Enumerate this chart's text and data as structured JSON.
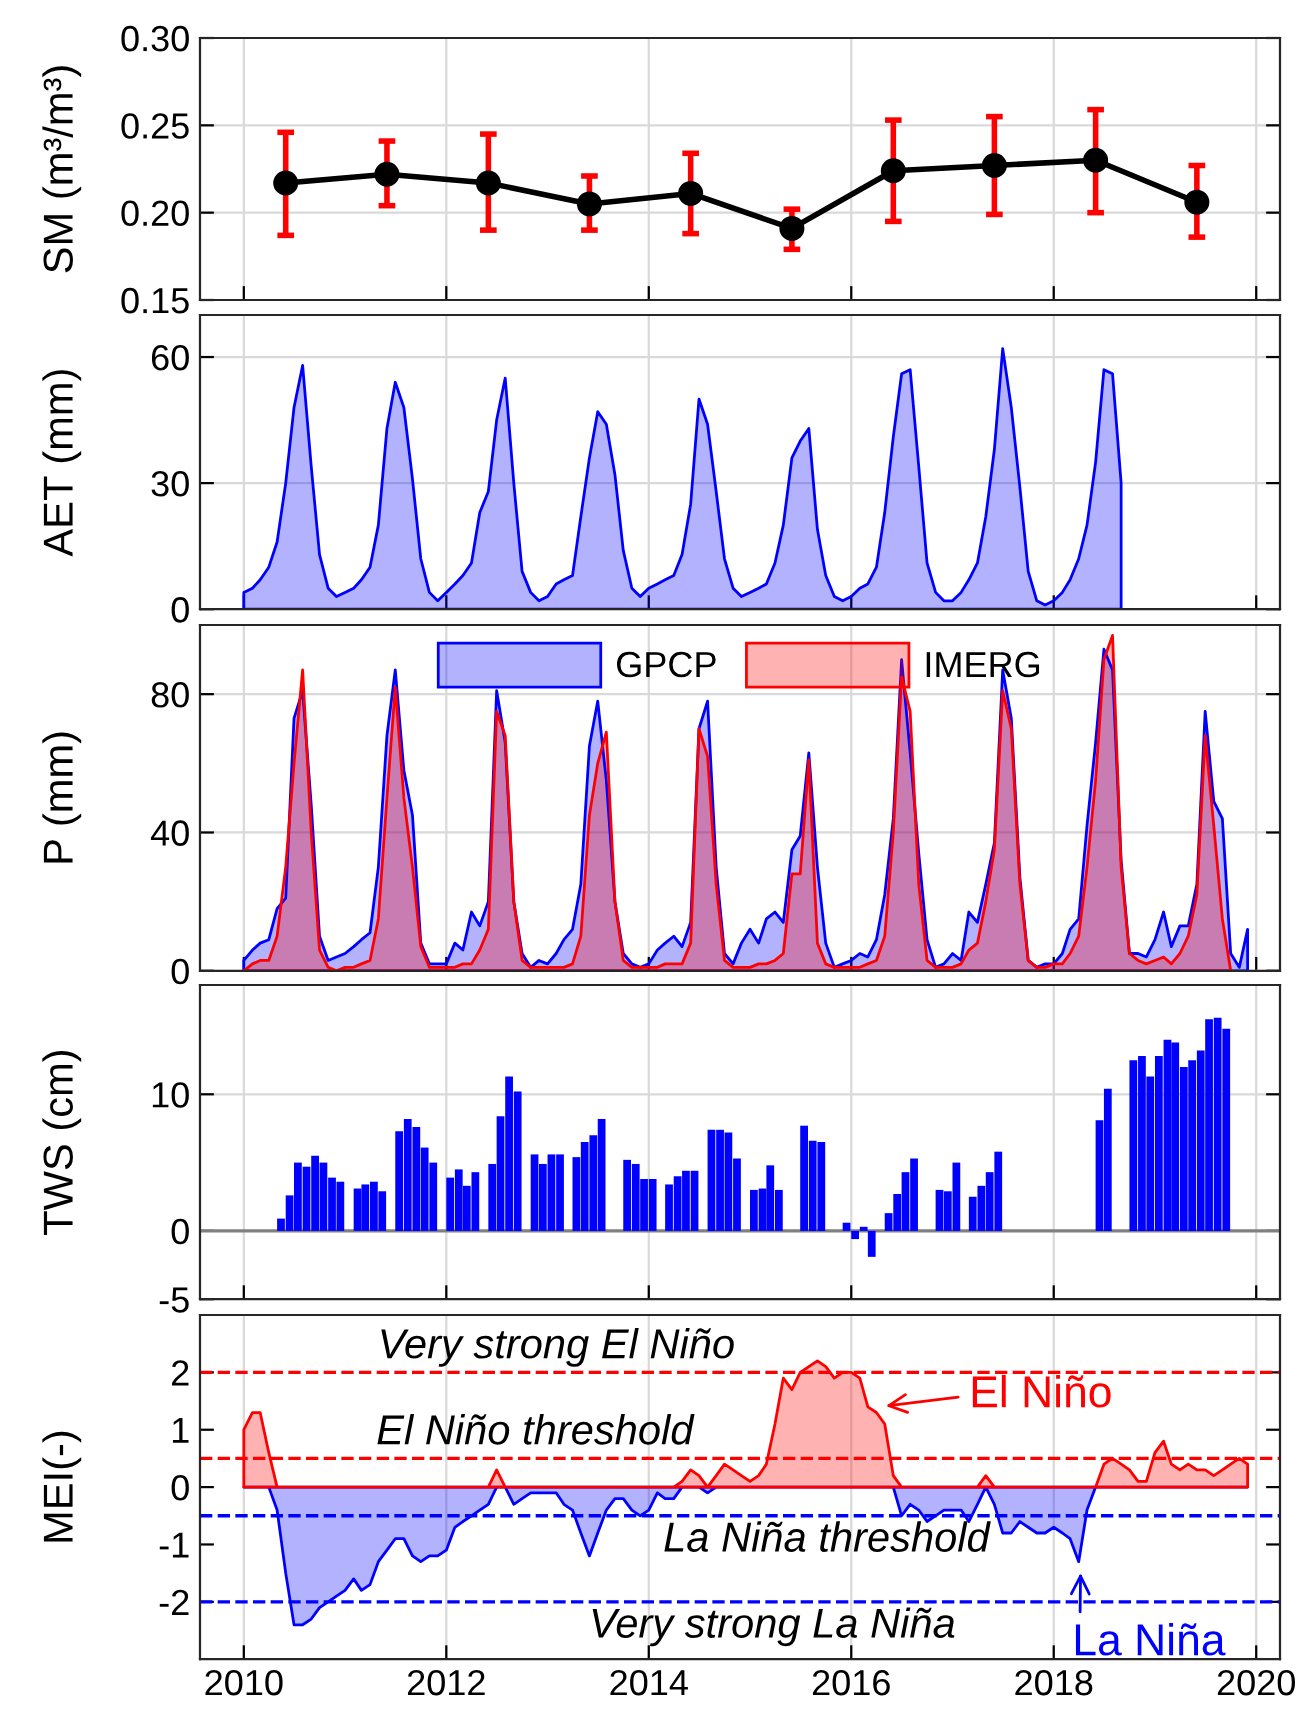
{
  "chart_data": [
    {
      "type": "line",
      "ylabel": "SM (m³/m³)",
      "x": [
        "2010-06",
        "2011-06",
        "2012-06",
        "2013-06",
        "2014-06",
        "2015-06",
        "2016-06",
        "2017-06",
        "2018-06",
        "2019-06"
      ],
      "series": [
        {
          "color": "#000000",
          "values": [
            0.217,
            0.222,
            0.217,
            0.205,
            0.211,
            0.191,
            0.224,
            0.227,
            0.23,
            0.206
          ],
          "errors": [
            [
              0.187,
              0.246
            ],
            [
              0.204,
              0.241
            ],
            [
              0.19,
              0.245
            ],
            [
              0.19,
              0.221
            ],
            [
              0.188,
              0.234
            ],
            [
              0.179,
              0.202
            ],
            [
              0.195,
              0.253
            ],
            [
              0.199,
              0.255
            ],
            [
              0.2,
              0.259
            ],
            [
              0.186,
              0.227
            ]
          ]
        }
      ],
      "marker": "circle",
      "xlim": [
        "2009-07-27",
        "2020-03-27"
      ],
      "xticks": [
        {
          "value": "2010-01-01",
          "label": null
        },
        {
          "value": "2012-01-01",
          "label": null
        },
        {
          "value": "2014-01-01",
          "label": null
        },
        {
          "value": "2016-01-01",
          "label": null
        },
        {
          "value": "2018-01-01",
          "label": null
        },
        {
          "value": "2020-01-01",
          "label": null
        }
      ],
      "ylim": [
        0.15,
        0.3
      ],
      "yticks": [
        {
          "value": 0.15,
          "label": "0.15"
        },
        {
          "value": 0.2,
          "label": "0.20"
        },
        {
          "value": 0.25,
          "label": "0.25"
        },
        {
          "value": 0.3,
          "label": "0.30"
        }
      ],
      "grid": true,
      "tick_labels": "y"
    },
    {
      "type": "area",
      "ylabel": "AET (mm)",
      "x": [
        "2010-01",
        "2010-02",
        "2010-03",
        "2010-04",
        "2010-05",
        "2010-06",
        "2010-07",
        "2010-08",
        "2010-09",
        "2010-10",
        "2010-11",
        "2010-12",
        "2011-01",
        "2011-02",
        "2011-03",
        "2011-04",
        "2011-05",
        "2011-06",
        "2011-07",
        "2011-08",
        "2011-09",
        "2011-10",
        "2011-11",
        "2011-12",
        "2012-01",
        "2012-02",
        "2012-03",
        "2012-04",
        "2012-05",
        "2012-06",
        "2012-07",
        "2012-08",
        "2012-09",
        "2012-10",
        "2012-11",
        "2012-12",
        "2013-01",
        "2013-02",
        "2013-03",
        "2013-04",
        "2013-05",
        "2013-06",
        "2013-07",
        "2013-08",
        "2013-09",
        "2013-10",
        "2013-11",
        "2013-12",
        "2014-01",
        "2014-02",
        "2014-03",
        "2014-04",
        "2014-05",
        "2014-06",
        "2014-07",
        "2014-08",
        "2014-09",
        "2014-10",
        "2014-11",
        "2014-12",
        "2015-01",
        "2015-02",
        "2015-03",
        "2015-04",
        "2015-05",
        "2015-06",
        "2015-07",
        "2015-08",
        "2015-09",
        "2015-10",
        "2015-11",
        "2015-12",
        "2016-01",
        "2016-02",
        "2016-03",
        "2016-04",
        "2016-05",
        "2016-06",
        "2016-07",
        "2016-08",
        "2016-09",
        "2016-10",
        "2016-11",
        "2016-12",
        "2017-01",
        "2017-02",
        "2017-03",
        "2017-04",
        "2017-05",
        "2017-06",
        "2017-07",
        "2017-08",
        "2017-09",
        "2017-10",
        "2017-11",
        "2017-12",
        "2018-01",
        "2018-02",
        "2018-03",
        "2018-04",
        "2018-05",
        "2018-06",
        "2018-07",
        "2018-08",
        "2018-09"
      ],
      "series": [
        {
          "color": "#0000ff",
          "values": [
            4,
            5,
            7,
            10,
            16,
            30,
            48,
            58,
            34,
            13,
            5,
            3,
            4,
            5,
            7,
            10,
            20,
            43,
            54,
            48,
            31,
            12,
            4,
            2,
            4,
            6,
            8,
            11,
            23,
            28,
            45,
            55,
            30,
            9,
            4,
            2,
            3,
            6,
            7,
            8,
            22,
            36,
            47,
            44,
            32,
            14,
            5,
            3,
            5,
            6,
            7,
            8,
            13,
            25,
            50,
            44,
            28,
            12,
            5,
            3,
            4,
            5,
            6,
            11,
            20,
            36,
            40,
            43,
            19,
            8,
            3,
            2,
            3,
            5,
            6,
            10,
            23,
            41,
            56,
            57,
            34,
            11,
            4,
            2,
            2,
            4,
            7,
            11,
            22,
            38,
            62,
            48,
            29,
            9,
            2,
            1,
            2,
            4,
            7,
            12,
            20,
            35,
            57,
            56,
            30
          ]
        }
      ],
      "xlim": [
        "2009-07-27",
        "2020-03-27"
      ],
      "xticks": [
        {
          "value": "2010-01-01",
          "label": null
        },
        {
          "value": "2012-01-01",
          "label": null
        },
        {
          "value": "2014-01-01",
          "label": null
        },
        {
          "value": "2016-01-01",
          "label": null
        },
        {
          "value": "2018-01-01",
          "label": null
        },
        {
          "value": "2020-01-01",
          "label": null
        }
      ],
      "ylim": [
        0,
        70
      ],
      "yticks": [
        0,
        30,
        60
      ],
      "grid": true,
      "tick_labels": "y"
    },
    {
      "type": "area",
      "ylabel": "P (mm)",
      "x": [
        "2010-01",
        "2010-02",
        "2010-03",
        "2010-04",
        "2010-05",
        "2010-06",
        "2010-07",
        "2010-08",
        "2010-09",
        "2010-10",
        "2010-11",
        "2010-12",
        "2011-01",
        "2011-02",
        "2011-03",
        "2011-04",
        "2011-05",
        "2011-06",
        "2011-07",
        "2011-08",
        "2011-09",
        "2011-10",
        "2011-11",
        "2011-12",
        "2012-01",
        "2012-02",
        "2012-03",
        "2012-04",
        "2012-05",
        "2012-06",
        "2012-07",
        "2012-08",
        "2012-09",
        "2012-10",
        "2012-11",
        "2012-12",
        "2013-01",
        "2013-02",
        "2013-03",
        "2013-04",
        "2013-05",
        "2013-06",
        "2013-07",
        "2013-08",
        "2013-09",
        "2013-10",
        "2013-11",
        "2013-12",
        "2014-01",
        "2014-02",
        "2014-03",
        "2014-04",
        "2014-05",
        "2014-06",
        "2014-07",
        "2014-08",
        "2014-09",
        "2014-10",
        "2014-11",
        "2014-12",
        "2015-01",
        "2015-02",
        "2015-03",
        "2015-04",
        "2015-05",
        "2015-06",
        "2015-07",
        "2015-08",
        "2015-09",
        "2015-10",
        "2015-11",
        "2015-12",
        "2016-01",
        "2016-02",
        "2016-03",
        "2016-04",
        "2016-05",
        "2016-06",
        "2016-07",
        "2016-08",
        "2016-09",
        "2016-10",
        "2016-11",
        "2016-12",
        "2017-01",
        "2017-02",
        "2017-03",
        "2017-04",
        "2017-05",
        "2017-06",
        "2017-07",
        "2017-08",
        "2017-09",
        "2017-10",
        "2017-11",
        "2017-12",
        "2018-01",
        "2018-02",
        "2018-03",
        "2018-04",
        "2018-05",
        "2018-06",
        "2018-07",
        "2018-08",
        "2018-09",
        "2018-10",
        "2018-11",
        "2018-12",
        "2019-01",
        "2019-02",
        "2019-03",
        "2019-04",
        "2019-05",
        "2019-06",
        "2019-07",
        "2019-08",
        "2019-09",
        "2019-10",
        "2019-11",
        "2019-12"
      ],
      "series": [
        {
          "name": "GPCP",
          "color": "#0000ff",
          "values": [
            3,
            6,
            8,
            9,
            18,
            21,
            73,
            81,
            48,
            10,
            3,
            4,
            5,
            7,
            9,
            11,
            30,
            68,
            87,
            58,
            45,
            8,
            2,
            2,
            2,
            8,
            6,
            17,
            13,
            20,
            81,
            66,
            20,
            5,
            1,
            3,
            2,
            5,
            9,
            12,
            25,
            65,
            78,
            55,
            20,
            5,
            2,
            1,
            2,
            6,
            8,
            10,
            7,
            14,
            70,
            78,
            30,
            5,
            2,
            8,
            12,
            8,
            15,
            17,
            14,
            35,
            39,
            63,
            30,
            8,
            1,
            2,
            3,
            5,
            4,
            9,
            22,
            44,
            90,
            63,
            34,
            9,
            1,
            2,
            5,
            3,
            17,
            14,
            25,
            37,
            87,
            73,
            27,
            3,
            1,
            2,
            2,
            5,
            12,
            15,
            42,
            66,
            93,
            87,
            32,
            5,
            5,
            4,
            9,
            17,
            7,
            13,
            13,
            25,
            75,
            49,
            44,
            5,
            1,
            12
          ]
        },
        {
          "name": "IMERG",
          "color": "#ff0000",
          "values": [
            0,
            2,
            3,
            3,
            10,
            30,
            60,
            87,
            40,
            6,
            1,
            0,
            1,
            1,
            2,
            3,
            15,
            50,
            82,
            50,
            30,
            7,
            1,
            1,
            1,
            1,
            2,
            2,
            6,
            12,
            75,
            68,
            20,
            3,
            1,
            1,
            1,
            1,
            1,
            2,
            10,
            45,
            60,
            69,
            20,
            3,
            1,
            1,
            1,
            1,
            2,
            2,
            2,
            8,
            70,
            62,
            25,
            3,
            1,
            1,
            1,
            2,
            2,
            3,
            5,
            28,
            28,
            61,
            8,
            2,
            1,
            1,
            1,
            1,
            2,
            3,
            10,
            40,
            85,
            75,
            25,
            3,
            1,
            1,
            1,
            2,
            6,
            8,
            20,
            35,
            81,
            70,
            25,
            3,
            1,
            1,
            2,
            2,
            5,
            10,
            30,
            55,
            90,
            97,
            30,
            5,
            3,
            2,
            3,
            4,
            2,
            5,
            10,
            22,
            68,
            42,
            15,
            0,
            null,
            null
          ]
        }
      ],
      "legend": "top",
      "xlim": [
        "2009-07-27",
        "2020-03-27"
      ],
      "xticks": [
        {
          "value": "2010-01-01",
          "label": null
        },
        {
          "value": "2012-01-01",
          "label": null
        },
        {
          "value": "2014-01-01",
          "label": null
        },
        {
          "value": "2016-01-01",
          "label": null
        },
        {
          "value": "2018-01-01",
          "label": null
        },
        {
          "value": "2020-01-01",
          "label": null
        }
      ],
      "ylim": [
        0,
        100
      ],
      "yticks": [
        0,
        40,
        80
      ],
      "grid": true,
      "tick_labels": "y"
    },
    {
      "type": "bar",
      "ylabel": "TWS (cm)",
      "x": [
        "2010-05",
        "2010-06",
        "2010-07",
        "2010-08",
        "2010-09",
        "2010-10",
        "2010-11",
        "2010-12",
        "2011-01",
        "2011-02",
        "2011-03",
        "2011-04",
        "2011-05",
        "2011-06",
        "2011-07",
        "2011-08",
        "2011-09",
        "2011-10",
        "2011-11",
        "2011-12",
        "2012-01",
        "2012-02",
        "2012-03",
        "2012-04",
        "2012-05",
        "2012-06",
        "2012-07",
        "2012-08",
        "2012-09",
        "2012-10",
        "2012-11",
        "2012-12",
        "2013-01",
        "2013-02",
        "2013-03",
        "2013-04",
        "2013-05",
        "2013-06",
        "2013-07",
        "2013-08",
        "2013-09",
        "2013-10",
        "2013-11",
        "2013-12",
        "2014-01",
        "2014-02",
        "2014-03",
        "2014-04",
        "2014-05",
        "2014-06",
        "2014-07",
        "2014-08",
        "2014-09",
        "2014-10",
        "2014-11",
        "2014-12",
        "2015-01",
        "2015-02",
        "2015-03",
        "2015-04",
        "2015-05",
        "2015-06",
        "2015-07",
        "2015-08",
        "2015-09",
        "2015-10",
        "2015-11",
        "2015-12",
        "2016-01",
        "2016-02",
        "2016-03",
        "2016-04",
        "2016-05",
        "2016-06",
        "2016-07",
        "2016-08",
        "2016-09",
        "2016-10",
        "2016-11",
        "2016-12",
        "2017-01",
        "2017-02",
        "2017-03",
        "2017-04",
        "2017-05",
        "2017-06",
        "2017-07",
        "2017-08",
        "2017-09",
        "2017-10",
        "2017-11",
        "2017-12",
        "2018-01",
        "2018-02",
        "2018-03",
        "2018-04",
        "2018-05",
        "2018-06",
        "2018-07",
        "2018-08",
        "2018-09",
        "2018-10",
        "2018-11",
        "2018-12",
        "2019-01",
        "2019-02",
        "2019-03",
        "2019-04",
        "2019-05",
        "2019-06",
        "2019-07",
        "2019-08",
        "2019-09"
      ],
      "series": [
        {
          "color": "#0000ff",
          "values": [
            0.9,
            2.6,
            5.0,
            4.7,
            5.5,
            5.0,
            3.9,
            3.6,
            null,
            3.1,
            3.4,
            3.6,
            2.9,
            null,
            7.3,
            8.2,
            7.6,
            6.1,
            5.0,
            null,
            3.9,
            4.5,
            3.3,
            4.3,
            null,
            4.9,
            8.4,
            11.3,
            10.2,
            null,
            5.6,
            4.9,
            5.6,
            5.6,
            null,
            5.4,
            6.5,
            7.0,
            8.2,
            null,
            null,
            5.2,
            4.9,
            3.8,
            3.8,
            null,
            3.4,
            4.0,
            4.4,
            4.4,
            null,
            7.4,
            7.4,
            7.2,
            5.3,
            null,
            3.0,
            3.1,
            4.8,
            3.0,
            null,
            null,
            7.7,
            6.6,
            6.5,
            null,
            null,
            0.6,
            -0.6,
            0.3,
            -1.9,
            null,
            1.3,
            2.7,
            4.3,
            5.3,
            null,
            null,
            3.0,
            2.9,
            5.0,
            null,
            2.5,
            3.3,
            4.3,
            5.8,
            null,
            null,
            null,
            null,
            null,
            null,
            null,
            null,
            null,
            null,
            null,
            8.1,
            10.4,
            null,
            null,
            12.5,
            12.8,
            11.3,
            12.8,
            14.0,
            13.8,
            12.0,
            12.5,
            13.2,
            15.5,
            15.6,
            14.8
          ]
        }
      ],
      "ref_lines": [
        {
          "axis": "y",
          "value": 0,
          "color": "#808080",
          "line_style": "solid"
        }
      ],
      "xlim": [
        "2009-07-27",
        "2020-03-27"
      ],
      "xticks": [
        {
          "value": "2010-01-01",
          "label": null
        },
        {
          "value": "2012-01-01",
          "label": null
        },
        {
          "value": "2014-01-01",
          "label": null
        },
        {
          "value": "2016-01-01",
          "label": null
        },
        {
          "value": "2018-01-01",
          "label": null
        },
        {
          "value": "2020-01-01",
          "label": null
        }
      ],
      "ylim": [
        -5,
        18
      ],
      "yticks": [
        -5,
        0,
        10
      ],
      "grid": true,
      "tick_labels": "y"
    },
    {
      "type": "area",
      "ylabel": "MEI(-)",
      "x": [
        "2010-01",
        "2010-02",
        "2010-03",
        "2010-04",
        "2010-05",
        "2010-06",
        "2010-07",
        "2010-08",
        "2010-09",
        "2010-10",
        "2010-11",
        "2010-12",
        "2011-01",
        "2011-02",
        "2011-03",
        "2011-04",
        "2011-05",
        "2011-06",
        "2011-07",
        "2011-08",
        "2011-09",
        "2011-10",
        "2011-11",
        "2011-12",
        "2012-01",
        "2012-02",
        "2012-03",
        "2012-04",
        "2012-05",
        "2012-06",
        "2012-07",
        "2012-08",
        "2012-09",
        "2012-10",
        "2012-11",
        "2012-12",
        "2013-01",
        "2013-02",
        "2013-03",
        "2013-04",
        "2013-05",
        "2013-06",
        "2013-07",
        "2013-08",
        "2013-09",
        "2013-10",
        "2013-11",
        "2013-12",
        "2014-01",
        "2014-02",
        "2014-03",
        "2014-04",
        "2014-05",
        "2014-06",
        "2014-07",
        "2014-08",
        "2014-09",
        "2014-10",
        "2014-11",
        "2014-12",
        "2015-01",
        "2015-02",
        "2015-03",
        "2015-04",
        "2015-05",
        "2015-06",
        "2015-07",
        "2015-08",
        "2015-09",
        "2015-10",
        "2015-11",
        "2015-12",
        "2016-01",
        "2016-02",
        "2016-03",
        "2016-04",
        "2016-05",
        "2016-06",
        "2016-07",
        "2016-08",
        "2016-09",
        "2016-10",
        "2016-11",
        "2016-12",
        "2017-01",
        "2017-02",
        "2017-03",
        "2017-04",
        "2017-05",
        "2017-06",
        "2017-07",
        "2017-08",
        "2017-09",
        "2017-10",
        "2017-11",
        "2017-12",
        "2018-01",
        "2018-02",
        "2018-03",
        "2018-04",
        "2018-05",
        "2018-06",
        "2018-07",
        "2018-08",
        "2018-09",
        "2018-10",
        "2018-11",
        "2018-12",
        "2019-01",
        "2019-02",
        "2019-03",
        "2019-04",
        "2019-05",
        "2019-06",
        "2019-07",
        "2019-08",
        "2019-09",
        "2019-10",
        "2019-11",
        "2019-12"
      ],
      "series": [
        {
          "color": "#0000ff",
          "values": [
            0,
            0,
            0,
            0,
            -0.4,
            -1.5,
            -2.4,
            -2.4,
            -2.3,
            -2.1,
            -2.0,
            -1.9,
            -1.8,
            -1.6,
            -1.8,
            -1.7,
            -1.3,
            -1.1,
            -0.9,
            -0.9,
            -1.2,
            -1.3,
            -1.2,
            -1.2,
            -1.1,
            -0.7,
            -0.6,
            -0.5,
            -0.4,
            -0.3,
            0,
            0,
            -0.3,
            -0.2,
            -0.1,
            -0.1,
            -0.1,
            -0.1,
            -0.3,
            -0.4,
            -0.8,
            -1.2,
            -0.8,
            -0.4,
            -0.2,
            -0.2,
            -0.4,
            -0.5,
            -0.4,
            -0.1,
            -0.2,
            -0.2,
            0,
            0,
            0,
            -0.1,
            0,
            0,
            0,
            0,
            0,
            0,
            0,
            0,
            0,
            0,
            0,
            0,
            0,
            0,
            0,
            0,
            0,
            0,
            0,
            0,
            0,
            0,
            -0.5,
            -0.3,
            -0.4,
            -0.6,
            -0.5,
            -0.4,
            -0.4,
            -0.4,
            -0.6,
            -0.3,
            0,
            -0.3,
            -0.8,
            -0.8,
            -0.6,
            -0.7,
            -0.8,
            -0.8,
            -0.7,
            -0.8,
            -0.9,
            -1.3,
            -0.4,
            0,
            0,
            0,
            0,
            0,
            0,
            0,
            0,
            0,
            0,
            0,
            0,
            0,
            0,
            0,
            0,
            0,
            0,
            0
          ]
        },
        {
          "color": "#ff0000",
          "values": [
            1.0,
            1.3,
            1.3,
            0.6,
            0,
            0,
            0,
            0,
            0,
            0,
            0,
            0,
            0,
            0,
            0,
            0,
            0,
            0,
            0,
            0,
            0,
            0,
            0,
            0,
            0,
            0,
            0,
            0,
            0,
            0,
            0.3,
            0,
            0,
            0,
            0,
            0,
            0,
            0,
            0,
            0,
            0,
            0,
            0,
            0,
            0,
            0,
            0,
            0,
            0,
            0,
            0,
            0,
            0.1,
            0.3,
            0.2,
            0,
            0.2,
            0.4,
            0.3,
            0.2,
            0.1,
            0.2,
            0.4,
            1.1,
            1.9,
            1.7,
            2.0,
            2.1,
            2.2,
            2.1,
            1.9,
            2.0,
            2.0,
            1.9,
            1.4,
            1.3,
            1.1,
            0.2,
            0,
            0,
            0,
            0,
            0,
            0,
            0,
            0,
            0,
            0,
            0.2,
            0,
            0,
            0,
            0,
            0,
            0,
            0,
            0,
            0,
            0,
            0,
            0,
            0,
            0.4,
            0.5,
            0.4,
            0.3,
            0.1,
            0.1,
            0.6,
            0.8,
            0.4,
            0.3,
            0.4,
            0.3,
            0.3,
            0.2,
            0.3,
            0.4,
            0.5,
            0.4
          ]
        }
      ],
      "ref_lines": [
        {
          "axis": "y",
          "value": 2,
          "label": "Very strong El Niño",
          "color": "#ff0000",
          "line_style": "dashed"
        },
        {
          "axis": "y",
          "value": 0.5,
          "label": "El Niño threshold",
          "color": "#ff0000",
          "line_style": "dashed"
        },
        {
          "axis": "y",
          "value": -0.5,
          "label": "La Niña threshold",
          "color": "#0000ff",
          "line_style": "dashed"
        },
        {
          "axis": "y",
          "value": -2,
          "label": "Very strong La Niña",
          "color": "#0000ff",
          "line_style": "dashed"
        }
      ],
      "annotations": [
        {
          "text": "El Niño",
          "x": "2016-04-15",
          "y": 1.4
        },
        {
          "text": "La Niña",
          "x": "2018-04-08",
          "y": -1.4
        }
      ],
      "xlim": [
        "2009-07-27",
        "2020-03-27"
      ],
      "xticks": [
        {
          "value": "2010-01-01",
          "label": "2010"
        },
        {
          "value": "2012-01-01",
          "label": "2012"
        },
        {
          "value": "2014-01-01",
          "label": "2014"
        },
        {
          "value": "2016-01-01",
          "label": "2016"
        },
        {
          "value": "2018-01-01",
          "label": "2018"
        },
        {
          "value": "2020-01-01",
          "label": "2020"
        }
      ],
      "ylim": [
        -3,
        3
      ],
      "yticks": [
        -2,
        -1,
        0,
        1,
        2
      ],
      "grid": "x"
    }
  ]
}
